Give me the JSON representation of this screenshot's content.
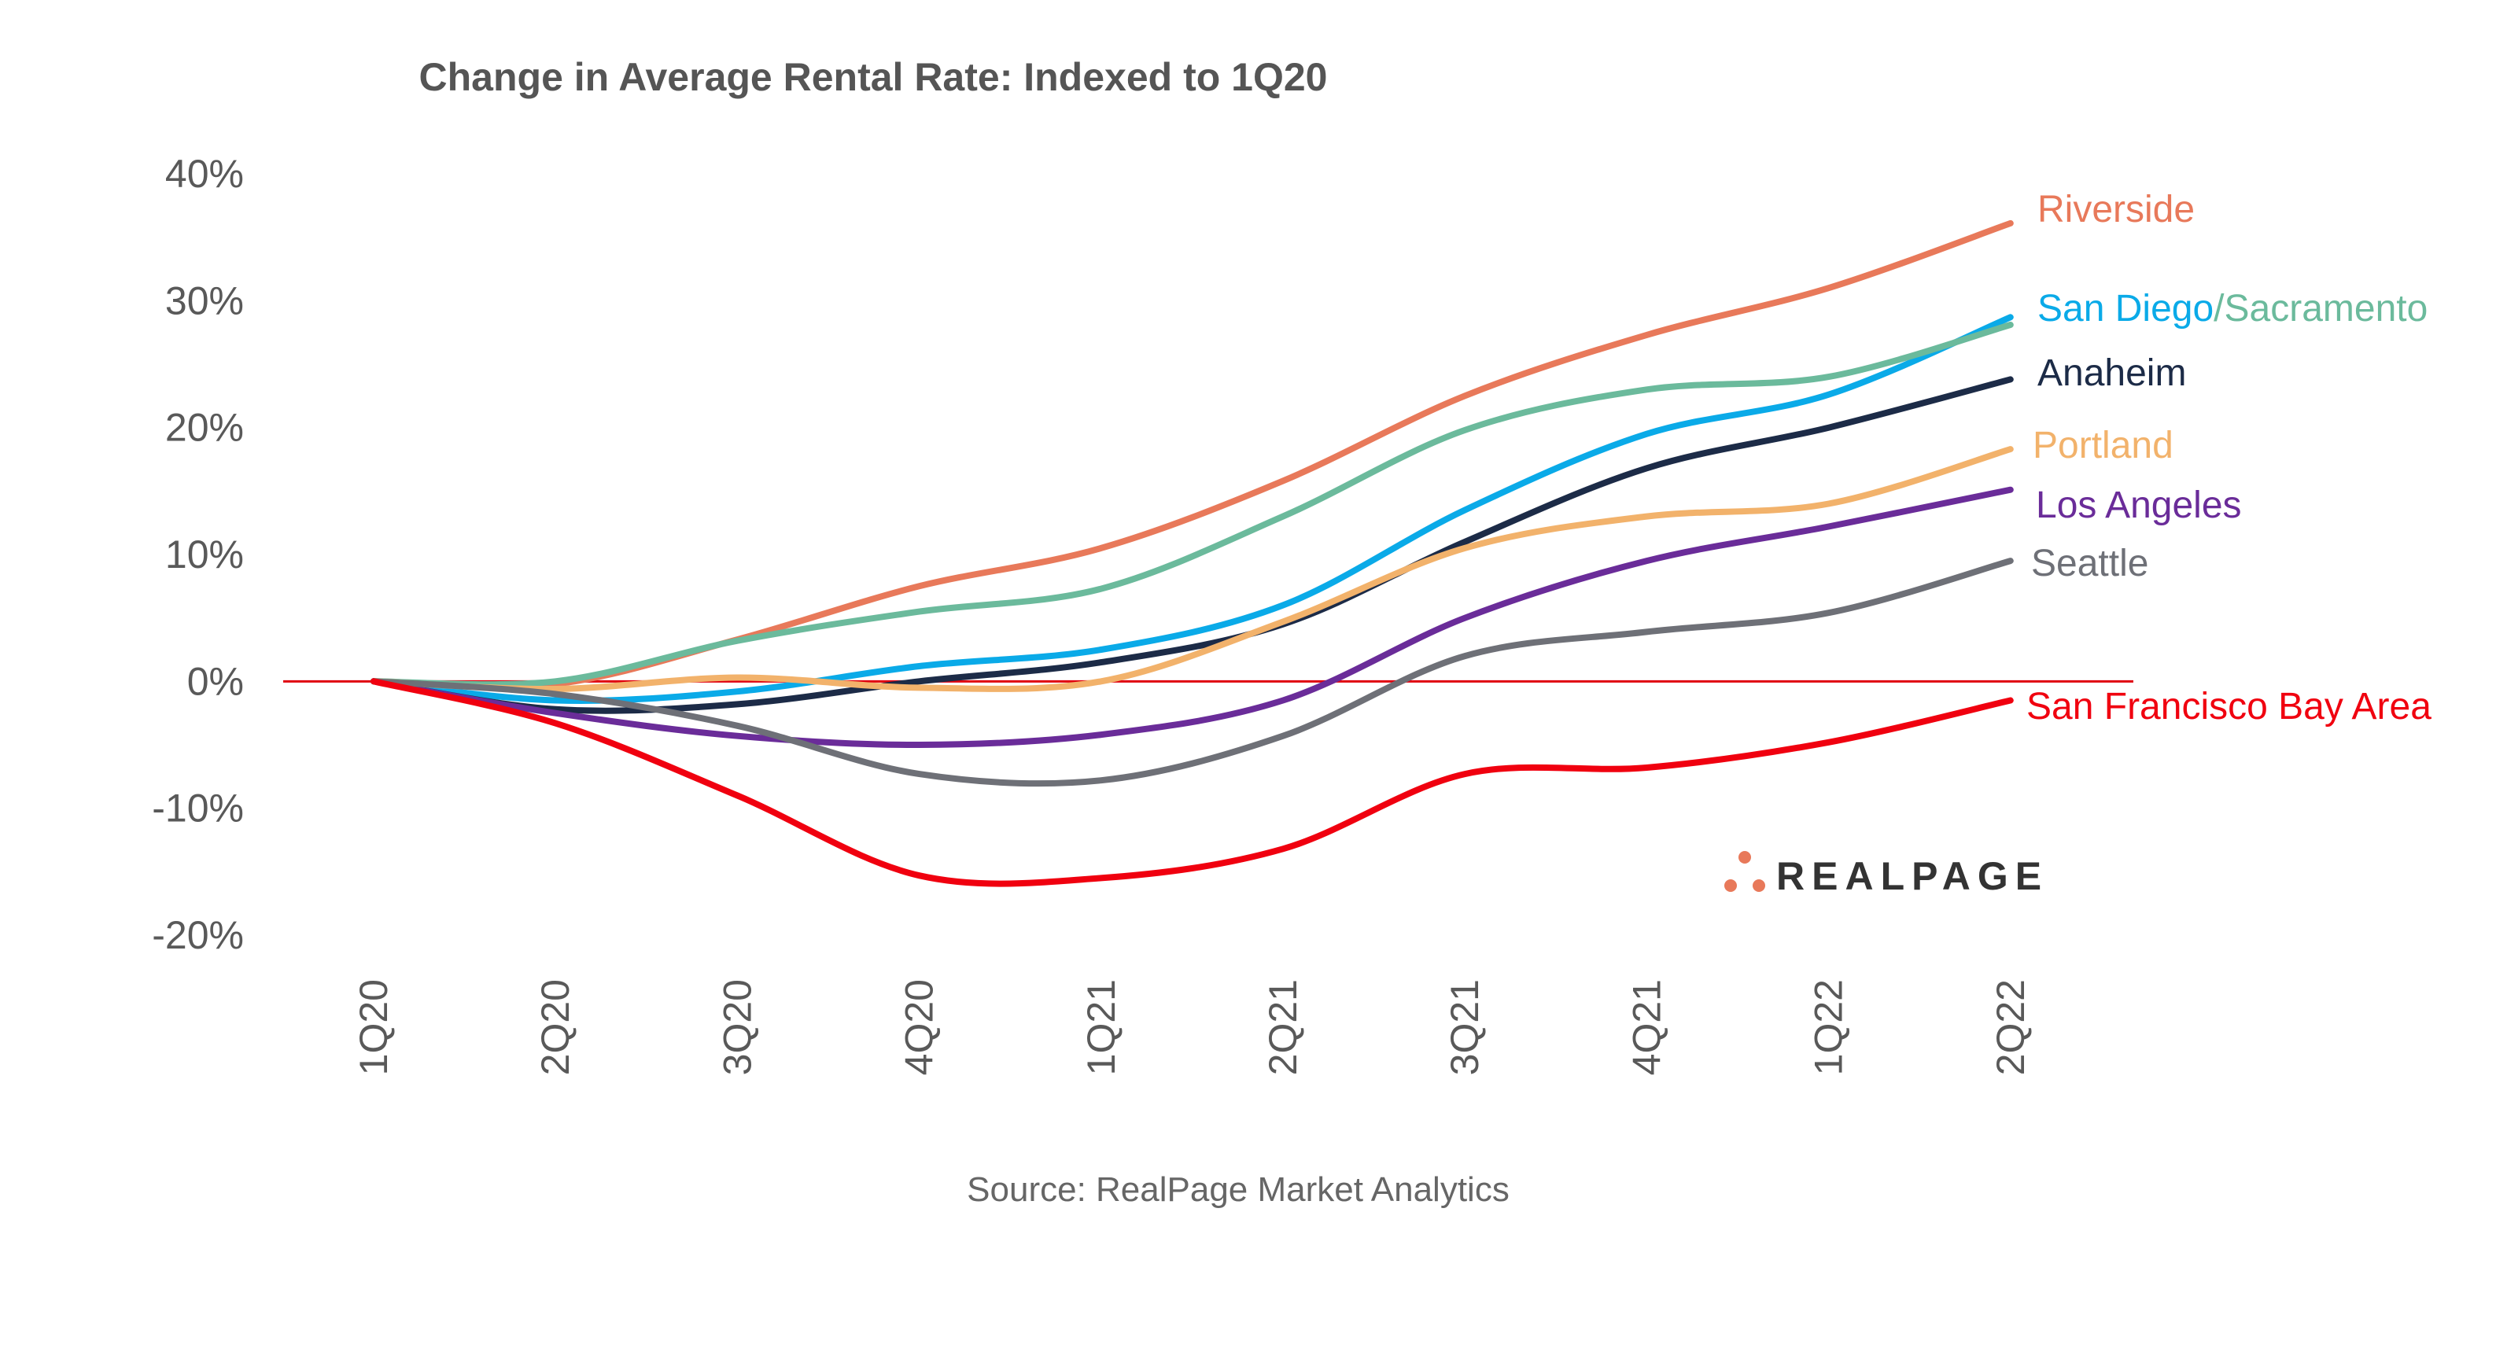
{
  "chart_data": {
    "type": "line",
    "title": "Change in Average Rental Rate: Indexed to 1Q20",
    "source": "Source: RealPage Market Analytics",
    "logo_text": "REALPAGE",
    "xlabel": "",
    "ylabel": "",
    "categories": [
      "1Q20",
      "2Q20",
      "3Q20",
      "4Q20",
      "1Q21",
      "2Q21",
      "3Q21",
      "4Q21",
      "1Q22",
      "2Q22"
    ],
    "y_ticks": [
      "40%",
      "30%",
      "20%",
      "10%",
      "0%",
      "-10%",
      "-20%"
    ],
    "ylim": [
      -20,
      40
    ],
    "grid": false,
    "zero_line_color": "#E0000F",
    "series": [
      {
        "name": "Riverside",
        "color": "#E8795A",
        "values": [
          0,
          -0.2,
          3.3,
          7.5,
          10.5,
          15.8,
          22.5,
          27.3,
          31.0,
          36.1
        ]
      },
      {
        "name": "San Diego",
        "color": "#0AAAE8",
        "values": [
          0,
          -1.5,
          -0.8,
          1.2,
          2.5,
          6.0,
          13.5,
          19.5,
          22.6,
          28.7
        ]
      },
      {
        "name": "Sacramento",
        "color": "#6BBA9C",
        "values": [
          0,
          0,
          3.2,
          5.5,
          7.3,
          13.0,
          19.8,
          23.0,
          24.0,
          28.1
        ]
      },
      {
        "name": "Anaheim",
        "color": "#1C2B47",
        "values": [
          0,
          -2.2,
          -1.8,
          0,
          1.5,
          4.5,
          11.0,
          16.8,
          20.0,
          23.8
        ]
      },
      {
        "name": "Portland",
        "color": "#F2B26B",
        "values": [
          0,
          -0.6,
          0.3,
          -0.5,
          0,
          4.7,
          10.5,
          13.0,
          14.0,
          18.3
        ]
      },
      {
        "name": "Los Angeles",
        "color": "#6A2C99",
        "values": [
          0,
          -2.5,
          -4.3,
          -5.0,
          -4.2,
          -1.5,
          5.0,
          9.5,
          12.2,
          15.1
        ]
      },
      {
        "name": "Seattle",
        "color": "#6E7077",
        "values": [
          0,
          -1.0,
          -3.5,
          -7.3,
          -7.8,
          -4.3,
          2.0,
          3.9,
          5.4,
          9.5
        ]
      },
      {
        "name": "San Francisco Bay Area",
        "color": "#F0000F",
        "values": [
          0,
          -3.3,
          -9.0,
          -15.3,
          -15.5,
          -13.2,
          -7.3,
          -6.8,
          -4.8,
          -1.5
        ]
      }
    ],
    "end_labels": [
      {
        "text": "Riverside",
        "color": "#E8795A",
        "series": "Riverside"
      },
      {
        "text": "San Diego",
        "color": "#0AAAE8",
        "series": "San Diego"
      },
      {
        "text": "/",
        "color": "#6BBA9C",
        "series": "Sacramento"
      },
      {
        "text": "Sacramento",
        "color": "#6BBA9C",
        "series": "Sacramento"
      },
      {
        "text": "Anaheim",
        "color": "#1C2B47",
        "series": "Anaheim"
      },
      {
        "text": "Portland",
        "color": "#F2B26B",
        "series": "Portland"
      },
      {
        "text": "Los Angeles",
        "color": "#6A2C99",
        "series": "Los Angeles"
      },
      {
        "text": "Seattle",
        "color": "#6E7077",
        "series": "Seattle"
      },
      {
        "text": "San Francisco Bay Area",
        "color": "#F0000F",
        "series": "San Francisco Bay Area"
      }
    ],
    "logo_colors": {
      "dots": "#E8795A",
      "text": "#333333"
    }
  }
}
